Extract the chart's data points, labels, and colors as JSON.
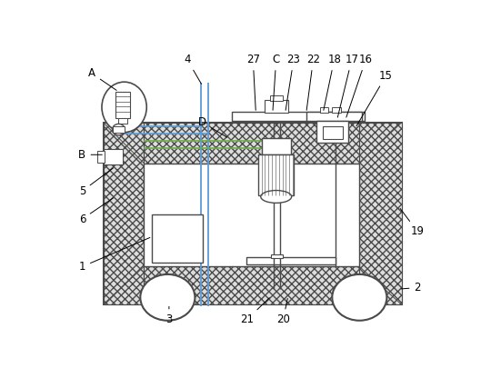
{
  "bg_color": "#ffffff",
  "line_color": "#4a4a4a",
  "blue_line": "#5b9bd5",
  "green_line": "#70ad47",
  "fig_width": 5.4,
  "fig_height": 4.05,
  "dpi": 100,
  "annotations": [
    [
      "A",
      42,
      42,
      80,
      68
    ],
    [
      "4",
      178,
      22,
      200,
      60
    ],
    [
      "D",
      200,
      112,
      238,
      135
    ],
    [
      "27",
      272,
      22,
      276,
      98
    ],
    [
      "C",
      305,
      22,
      300,
      98
    ],
    [
      "23",
      330,
      22,
      318,
      98
    ],
    [
      "22",
      358,
      22,
      348,
      98
    ],
    [
      "18",
      388,
      22,
      372,
      98
    ],
    [
      "17",
      413,
      22,
      392,
      108
    ],
    [
      "16",
      433,
      22,
      404,
      108
    ],
    [
      "15",
      462,
      45,
      418,
      120
    ],
    [
      "B",
      28,
      158,
      60,
      158
    ],
    [
      "5",
      28,
      210,
      75,
      175
    ],
    [
      "6",
      28,
      250,
      75,
      218
    ],
    [
      "1",
      28,
      318,
      128,
      275
    ],
    [
      "19",
      507,
      268,
      480,
      232
    ],
    [
      "2",
      507,
      348,
      480,
      350
    ],
    [
      "3",
      152,
      394,
      152,
      375
    ],
    [
      "21",
      263,
      394,
      298,
      360
    ],
    [
      "20",
      315,
      394,
      322,
      360
    ]
  ]
}
